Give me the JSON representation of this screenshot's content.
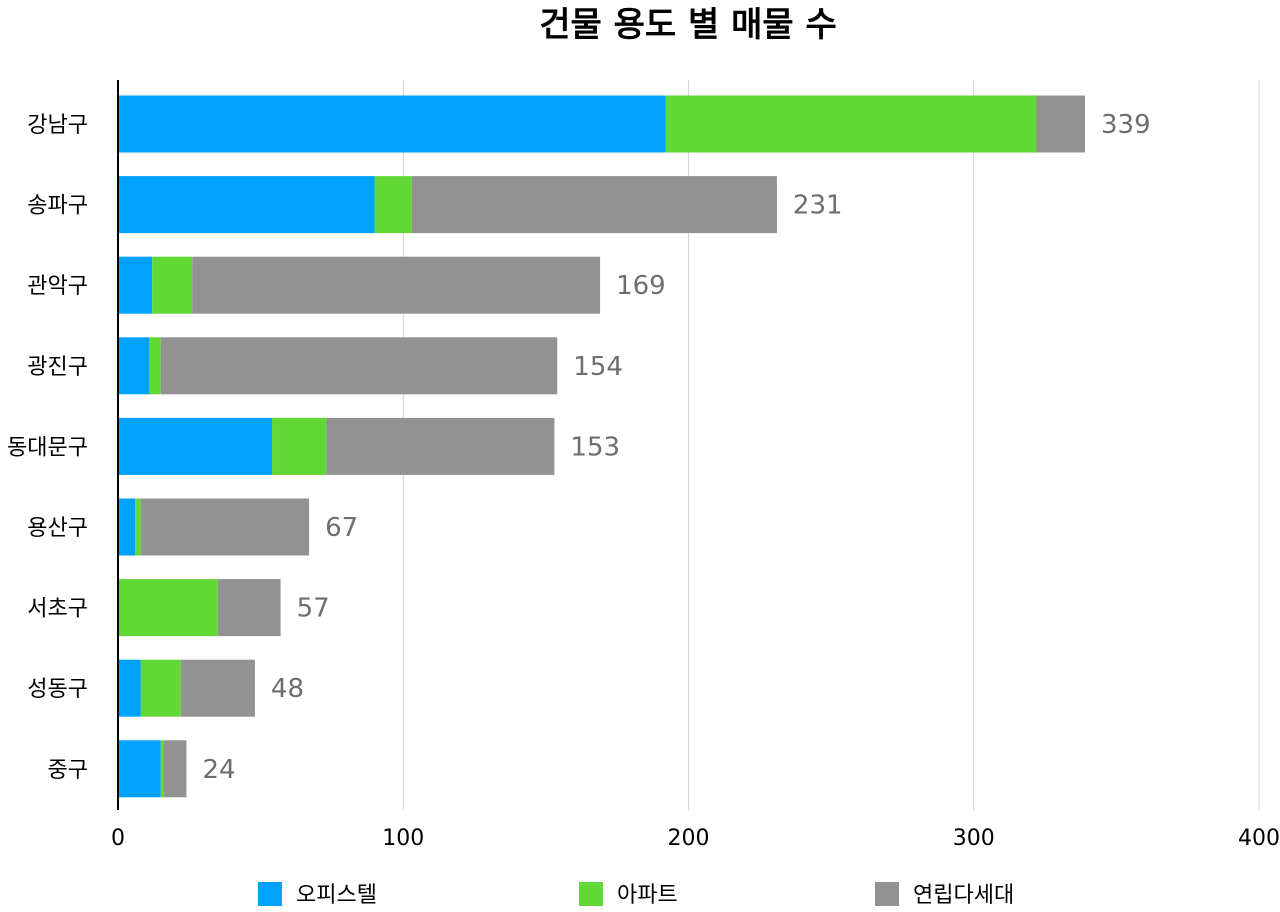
{
  "chart_data": {
    "type": "bar",
    "orientation": "horizontal",
    "stacked": true,
    "title": "건물 용도 별 매물 수",
    "categories": [
      "강남구",
      "송파구",
      "관악구",
      "광진구",
      "동대문구",
      "용산구",
      "서초구",
      "성동구",
      "중구"
    ],
    "series": [
      {
        "name": "오피스텔",
        "color": "#00A2FF",
        "values": [
          192,
          90,
          12,
          11,
          54,
          6,
          0,
          8,
          15
        ]
      },
      {
        "name": "아파트",
        "color": "#61D836",
        "values": [
          130,
          13,
          14,
          4,
          19,
          2,
          35,
          14,
          1
        ]
      },
      {
        "name": "연립다세대",
        "color": "#929292",
        "values": [
          17,
          128,
          143,
          139,
          80,
          59,
          22,
          26,
          8
        ]
      }
    ],
    "totals": [
      "339",
      "231",
      "169",
      "154",
      "153",
      "67",
      "57",
      "48",
      "24"
    ],
    "xlim": [
      0,
      400
    ],
    "xticks": [
      "0",
      "100",
      "200",
      "300",
      "400"
    ],
    "grid": true,
    "legend_position": "bottom",
    "xlabel": "",
    "ylabel": ""
  }
}
